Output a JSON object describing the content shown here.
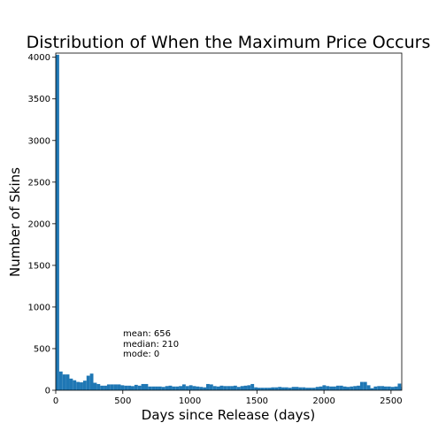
{
  "chart_data": {
    "type": "bar",
    "title": "Distribution of When the Maximum Price Occurs",
    "xlabel": "Days since Release (days)",
    "ylabel": "Number of Skins",
    "xlim": [
      0,
      2580
    ],
    "ylim": [
      0,
      4050
    ],
    "xticks": [
      0,
      500,
      1000,
      1500,
      2000,
      2500
    ],
    "yticks": [
      0,
      500,
      1000,
      1500,
      2000,
      2500,
      3000,
      3500,
      4000
    ],
    "bin_width": 25.5,
    "bin_start": 0,
    "bar_color": "#1f77b4",
    "values": [
      4030,
      225,
      190,
      190,
      140,
      120,
      100,
      95,
      115,
      175,
      200,
      90,
      75,
      55,
      55,
      70,
      70,
      70,
      70,
      60,
      55,
      55,
      50,
      65,
      55,
      75,
      75,
      45,
      45,
      45,
      45,
      40,
      50,
      55,
      45,
      45,
      50,
      70,
      50,
      60,
      50,
      45,
      40,
      35,
      75,
      70,
      50,
      45,
      55,
      50,
      50,
      50,
      55,
      40,
      50,
      55,
      60,
      75,
      35,
      30,
      30,
      30,
      30,
      35,
      35,
      40,
      35,
      35,
      30,
      40,
      40,
      35,
      35,
      30,
      30,
      30,
      40,
      45,
      60,
      50,
      45,
      45,
      55,
      55,
      45,
      40,
      45,
      50,
      55,
      100,
      100,
      60,
      25,
      45,
      50,
      50,
      45,
      45,
      40,
      45,
      80,
      40
    ],
    "annotations": {
      "mean": "mean: 656",
      "median": "median: 210",
      "mode": "mode: 0"
    }
  }
}
